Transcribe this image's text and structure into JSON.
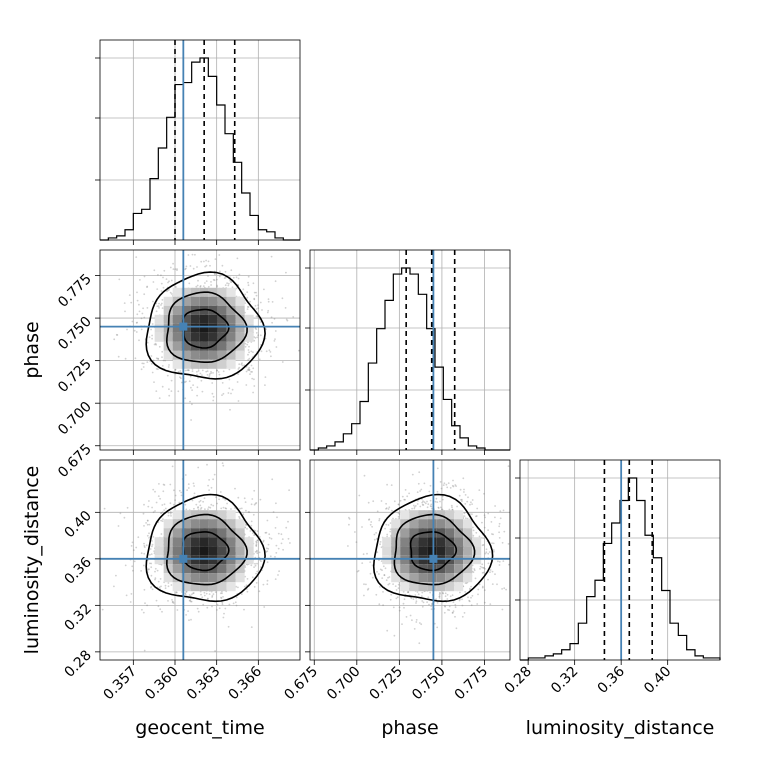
{
  "chart_data": {
    "type": "corner",
    "parameters": [
      "geocent_time",
      "phase",
      "luminosity_distance"
    ],
    "axis_labels": {
      "geocent_time": "geocent_time",
      "phase": "phase",
      "luminosity_distance": "luminosity_distance"
    },
    "ranges": {
      "geocent_time": [
        0.3546,
        0.369
      ],
      "phase": [
        0.6725,
        0.79
      ],
      "luminosity_distance": [
        0.273,
        0.445
      ]
    },
    "ticks": {
      "geocent_time": {
        "values": [
          0.357,
          0.36,
          0.363,
          0.366
        ],
        "labels": [
          "0.357",
          "0.360",
          "0.363",
          "0.366"
        ]
      },
      "phase": {
        "values": [
          0.675,
          0.7,
          0.725,
          0.75,
          0.775
        ],
        "labels": [
          "0.675",
          "0.700",
          "0.725",
          "0.750",
          "0.775"
        ]
      },
      "luminosity_distance": {
        "values": [
          0.28,
          0.32,
          0.36,
          0.4
        ],
        "labels": [
          "0.28",
          "0.32",
          "0.36",
          "0.40"
        ]
      }
    },
    "injection": {
      "geocent_time": 0.3606,
      "phase": 0.745,
      "luminosity_distance": 0.36
    },
    "quantiles": {
      "geocent_time": [
        0.36,
        0.3621,
        0.3643
      ],
      "phase": [
        0.729,
        0.744,
        0.7575
      ],
      "luminosity_distance": [
        0.3456,
        0.367,
        0.3867
      ]
    },
    "histograms": {
      "geocent_time": [
        0,
        1,
        2,
        5,
        13,
        15,
        30,
        45,
        60,
        76,
        77,
        87,
        89,
        80,
        66,
        52,
        38,
        23,
        12,
        5,
        4,
        1,
        0,
        0
      ],
      "phase": [
        0,
        1,
        2,
        4,
        8,
        13,
        24,
        43,
        60,
        74,
        87,
        90,
        87,
        77,
        60,
        41,
        25,
        12,
        6,
        2,
        1,
        0,
        0,
        0
      ],
      "luminosity_distance": [
        0,
        1,
        1,
        2,
        3,
        5,
        8,
        18,
        31,
        39,
        57,
        67,
        78,
        89,
        78,
        61,
        50,
        34,
        18,
        12,
        5,
        2,
        1,
        1
      ]
    },
    "pair_centers": {
      "phase_vs_geocent_time": [
        0.3621,
        0.744
      ],
      "luminosity_distance_vs_geocent_time": [
        0.3621,
        0.367
      ],
      "luminosity_distance_vs_phase": [
        0.744,
        0.367
      ]
    },
    "contour_levels": 3,
    "grid": true
  }
}
